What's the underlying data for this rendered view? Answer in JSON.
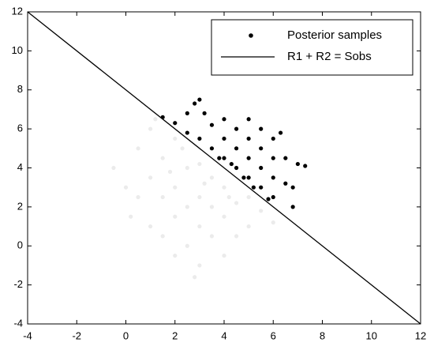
{
  "chart_data": {
    "type": "scatter",
    "xlim": [
      -4,
      12
    ],
    "ylim": [
      -4,
      12
    ],
    "xticks": [
      -4,
      -2,
      0,
      2,
      4,
      6,
      8,
      10,
      12
    ],
    "yticks": [
      -4,
      -2,
      0,
      2,
      4,
      6,
      8,
      10,
      12
    ],
    "grid": false,
    "legend": "upper right",
    "series": [
      {
        "color": "#ebebeb",
        "x": [
          -0.5,
          0,
          0.5,
          0.5,
          1,
          1,
          1,
          1.5,
          1.5,
          1.5,
          2,
          2,
          2,
          2,
          2.5,
          2.5,
          2.5,
          3,
          3,
          3,
          3,
          3.5,
          3.5,
          3.5,
          4,
          4,
          4,
          4.5,
          4.5,
          5,
          5,
          5.5,
          6,
          2.8,
          1.2,
          0.2,
          3.2,
          2.3,
          1.8,
          4.2
        ],
        "values": [
          4,
          3,
          2.5,
          5,
          1,
          3.5,
          6,
          0.5,
          2.5,
          4.5,
          -0.5,
          1.5,
          3,
          5.5,
          0,
          2,
          4,
          -1,
          1,
          2.5,
          4.2,
          0.5,
          2,
          3.5,
          -0.5,
          1.5,
          3,
          0.5,
          2.2,
          1,
          2.5,
          1.8,
          1.2,
          -1.6,
          6.5,
          1.5,
          3.2,
          5,
          3.8,
          2.5
        ]
      },
      {
        "name": "Posterior samples",
        "color": "#000000",
        "x": [
          1.5,
          2,
          2.5,
          2.8,
          3,
          3,
          3.5,
          3.5,
          4,
          4,
          4,
          4.5,
          4.5,
          4.5,
          5,
          5,
          5,
          5,
          5.5,
          5.5,
          5.5,
          5.5,
          6,
          6,
          6,
          6,
          6.5,
          6.5,
          6.8,
          7,
          7.3,
          6.3,
          3.8,
          4.3,
          4.8,
          5.2,
          2.5,
          3.2,
          6.8,
          5.8
        ],
        "values": [
          6.6,
          6.3,
          6.8,
          7.3,
          7.5,
          5.5,
          6.2,
          5,
          6.5,
          5.5,
          4.5,
          6,
          5,
          4,
          6.5,
          5.5,
          4.5,
          3.5,
          6,
          5,
          4,
          3,
          5.5,
          4.5,
          3.5,
          2.5,
          4.5,
          3.2,
          2,
          4.2,
          4.1,
          5.8,
          4.5,
          4.2,
          3.5,
          3,
          5.8,
          6.8,
          3,
          2.4
        ]
      },
      {
        "name": "R1 + R2 = Sobs",
        "type": "line",
        "color": "#000000",
        "x": [
          -4,
          12
        ],
        "values": [
          12,
          -4
        ]
      }
    ]
  }
}
